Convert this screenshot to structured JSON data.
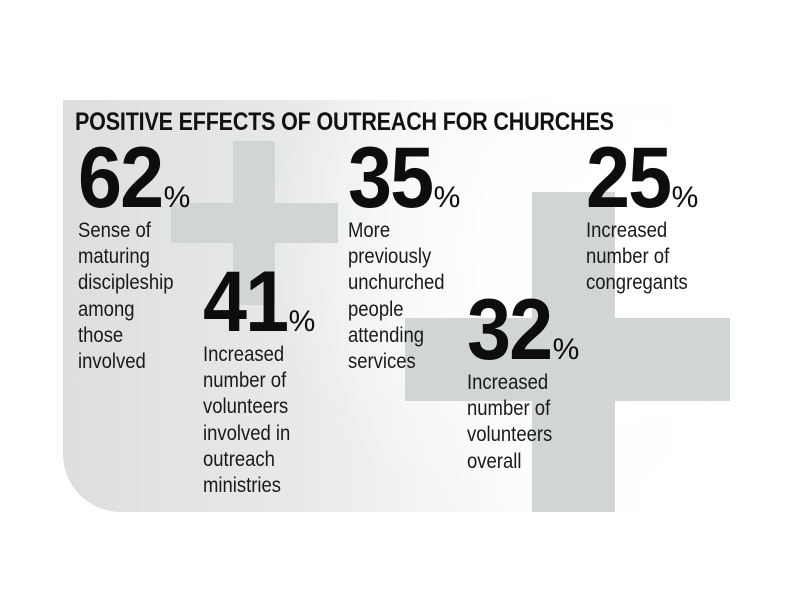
{
  "title": "POSITIVE EFFECTS OF OUTREACH FOR CHURCHES",
  "colors": {
    "text": "#111111",
    "cross": "#d2d5d6",
    "panel_left": "#dcdedf",
    "panel_right": "#ffffff"
  },
  "icons": {
    "small_cross": "plus-cross-icon",
    "large_cross": "plus-cross-icon"
  },
  "stats": [
    {
      "value": "62",
      "unit": "%",
      "description_lines": [
        "Sense of",
        "maturing",
        "discipleship",
        "among",
        "those",
        "involved"
      ]
    },
    {
      "value": "35",
      "unit": "%",
      "description_lines": [
        "More",
        "previously",
        "unchurched",
        "people",
        "attending",
        "services"
      ]
    },
    {
      "value": "25",
      "unit": "%",
      "description_lines": [
        "Increased",
        "number of",
        "congregants"
      ]
    },
    {
      "value": "41",
      "unit": "%",
      "description_lines": [
        "Increased",
        "number of",
        "volunteers",
        "involved in",
        "outreach",
        "ministries"
      ]
    },
    {
      "value": "32",
      "unit": "%",
      "description_lines": [
        "Increased",
        "number of",
        "volunteers",
        "overall"
      ]
    }
  ]
}
